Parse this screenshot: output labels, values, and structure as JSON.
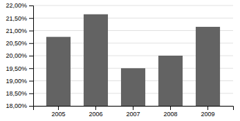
{
  "chart_data": {
    "type": "bar",
    "categories": [
      "2005",
      "2006",
      "2007",
      "2008",
      "2009"
    ],
    "values": [
      20.75,
      21.65,
      19.5,
      20.0,
      21.15
    ],
    "color": "#636363",
    "ylim": [
      18.0,
      22.0
    ],
    "yticks": [
      {
        "value": 18.0,
        "label": "18,00%"
      },
      {
        "value": 18.5,
        "label": "18,50%"
      },
      {
        "value": 19.0,
        "label": "19,00%"
      },
      {
        "value": 19.5,
        "label": "19,50%"
      },
      {
        "value": 20.0,
        "label": "20,00%"
      },
      {
        "value": 20.5,
        "label": "20,50%"
      },
      {
        "value": 21.0,
        "label": "21,00%"
      },
      {
        "value": 21.5,
        "label": "21,50%"
      },
      {
        "value": 22.0,
        "label": "22,00%"
      }
    ],
    "grid": true
  }
}
